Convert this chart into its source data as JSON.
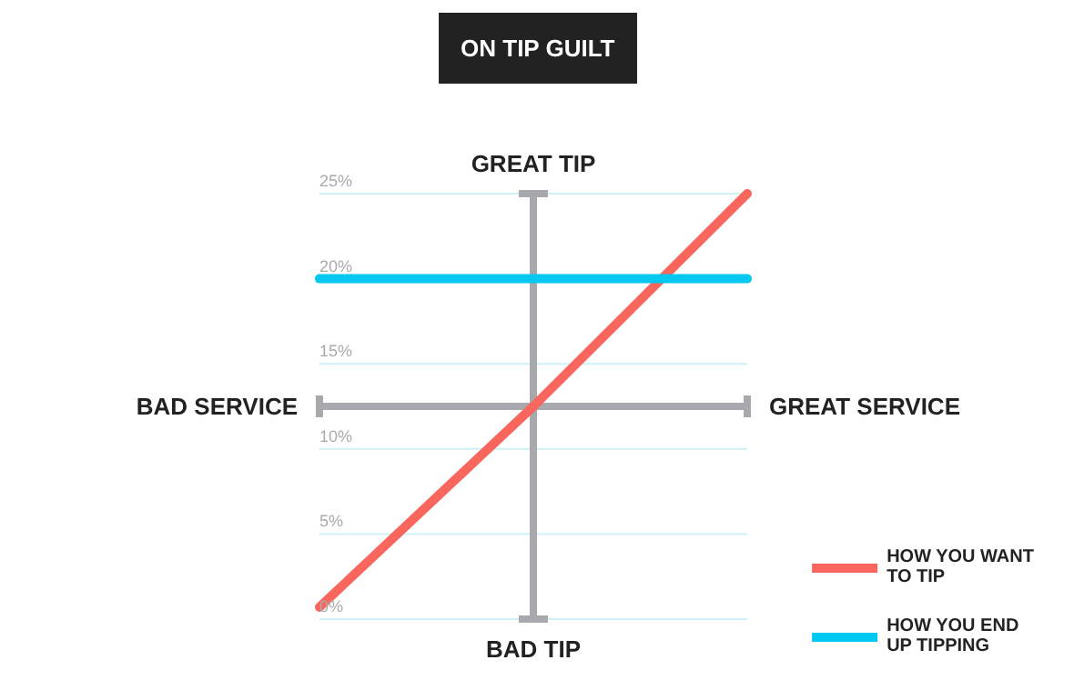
{
  "chart_data": {
    "type": "line",
    "title": "ON TIP GUILT",
    "categories": [
      null,
      null,
      null
    ],
    "ylim": [
      0,
      25
    ],
    "yticks": [
      {
        "value": 0,
        "label": "0%"
      },
      {
        "value": 5,
        "label": "5%"
      },
      {
        "value": 10,
        "label": "10%"
      },
      {
        "value": 15,
        "label": "15%"
      },
      {
        "value": 20,
        "label": "20%"
      },
      {
        "value": 25,
        "label": "25%"
      }
    ],
    "tick_labels": "y",
    "grid": "y",
    "legend": "bottom right",
    "line_style": "solid",
    "series": [
      {
        "name": "HOW YOU WANT TO TIP",
        "color": "#f9665e",
        "values": [
          0.7,
          12.5,
          25
        ]
      },
      {
        "name": "HOW YOU END UP TIPPING",
        "color": "#00c8f0",
        "values": [
          20,
          20,
          20
        ]
      }
    ],
    "ref_lines": [
      {
        "axis": "y",
        "value": 12.5,
        "color": "#a8a9ad"
      }
    ],
    "annotations": [
      "GREAT TIP",
      "BAD TIP",
      "BAD SERVICE",
      "GREAT SERVICE"
    ]
  }
}
